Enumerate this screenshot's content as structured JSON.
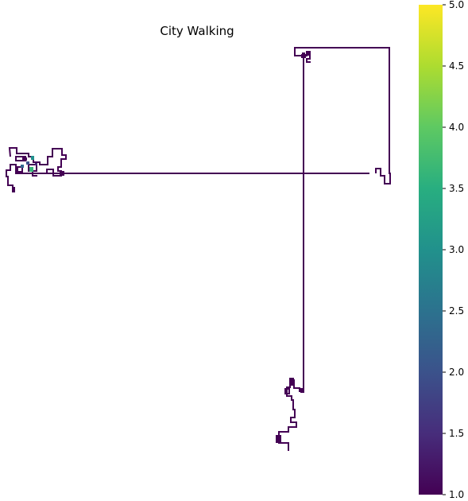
{
  "chart_data": {
    "type": "heatmap",
    "title": "City Walking",
    "xlabel": "",
    "ylabel": "",
    "grid": false,
    "axes_visible": false,
    "colormap": "viridis",
    "colorbar": {
      "range": [
        1.0,
        5.0
      ],
      "ticks": [
        "1.0",
        "1.5",
        "2.0",
        "2.5",
        "3.0",
        "3.5",
        "4.0",
        "4.5",
        "5.0"
      ],
      "position": "right"
    },
    "path_value": 1.0,
    "path_color": "#440154",
    "cluster_cells": [
      {
        "value": 2.5,
        "color": "#21918c"
      },
      {
        "value": 2.0,
        "color": "#3b528b"
      },
      {
        "value": 3.5,
        "color": "#35b779"
      },
      {
        "value": 2.0,
        "color": "#31688e"
      },
      {
        "value": 1.5,
        "color": "#482878"
      }
    ]
  }
}
